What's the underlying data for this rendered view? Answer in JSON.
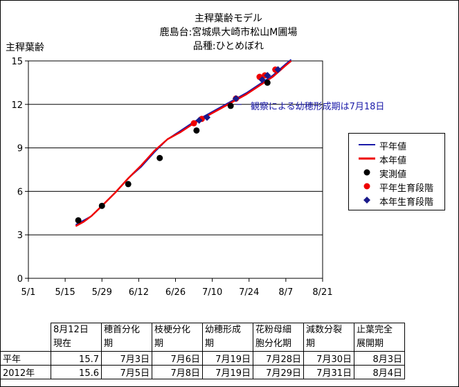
{
  "title_lines": [
    "主稈葉齢モデル",
    "鹿島台:宮城県大崎市松山M圃場",
    "品種:ひとめぼれ"
  ],
  "chart_data": {
    "type": "line",
    "title": "主稈葉齢モデル",
    "ylabel": "主稈葉齢",
    "xlabel": "",
    "ylim": [
      0,
      15
    ],
    "y_ticks": [
      "0",
      "3",
      "6",
      "9",
      "12",
      "15"
    ],
    "y_tick_values": [
      0,
      3,
      6,
      9,
      12,
      15
    ],
    "xlim": [
      "5/1",
      "8/21"
    ],
    "x_ticks": [
      "5/1",
      "5/15",
      "5/29",
      "6/12",
      "6/26",
      "7/10",
      "7/24",
      "8/7",
      "8/21"
    ],
    "grid": "horizontal",
    "legend_position": "right",
    "series": [
      {
        "name": "平年値",
        "kind": "line",
        "color": "#1a1aa8",
        "x": [
          "5/19",
          "5/25",
          "5/29",
          "6/3",
          "6/8",
          "6/13",
          "6/18",
          "6/23",
          "6/28",
          "7/3",
          "7/8",
          "7/13",
          "7/18",
          "7/23",
          "7/28",
          "8/2",
          "8/7",
          "8/9"
        ],
        "y": [
          3.7,
          4.3,
          5.0,
          5.9,
          6.9,
          7.7,
          8.7,
          9.6,
          10.2,
          10.8,
          11.3,
          11.8,
          12.3,
          12.8,
          13.4,
          14.0,
          14.8,
          15.1
        ]
      },
      {
        "name": "本年値",
        "kind": "line",
        "color": "#ee0000",
        "x": [
          "5/19",
          "5/22",
          "5/25",
          "5/29",
          "6/3",
          "6/8",
          "6/13",
          "6/18",
          "6/23",
          "6/28",
          "7/3",
          "7/8",
          "7/13",
          "7/18",
          "7/23",
          "7/28",
          "8/2",
          "8/7",
          "8/9"
        ],
        "y": [
          3.6,
          3.9,
          4.3,
          5.0,
          5.9,
          6.9,
          7.8,
          8.8,
          9.6,
          10.1,
          10.7,
          11.2,
          11.7,
          12.2,
          12.7,
          13.3,
          13.9,
          14.7,
          15.0
        ]
      },
      {
        "name": "実測値",
        "kind": "scatter",
        "marker": "circle",
        "color": "#000000",
        "x": [
          "5/20",
          "5/29",
          "6/8",
          "6/20",
          "7/4",
          "7/17",
          "7/31"
        ],
        "y": [
          4.0,
          5.0,
          6.5,
          8.3,
          10.2,
          11.9,
          13.5
        ]
      },
      {
        "name": "平年生育段階",
        "kind": "scatter",
        "marker": "circle",
        "color": "#ee0000",
        "x": [
          "7/3",
          "7/6",
          "7/19",
          "7/28",
          "7/30",
          "8/3"
        ],
        "y": [
          10.7,
          11.0,
          12.4,
          13.9,
          14.0,
          14.4
        ]
      },
      {
        "name": "本年生育段階",
        "kind": "scatter",
        "marker": "diamond",
        "color": "#1a1a8a",
        "x": [
          "7/5",
          "7/8",
          "7/19",
          "7/29",
          "7/31",
          "8/4"
        ],
        "y": [
          10.9,
          11.1,
          12.4,
          13.7,
          14.0,
          14.4
        ]
      }
    ],
    "annotation": {
      "text": "観察による幼穂形成期は7月18日",
      "x": "7/18",
      "y": 12.0,
      "color": "#1a1aa8"
    }
  },
  "table": {
    "header": [
      "",
      "8月12日\n現在",
      "穂首分化\n期",
      "枝梗分化\n期",
      "幼穂形成\n期",
      "花粉母細\n胞分化期",
      "減数分裂\n期",
      "止葉完全\n展開期"
    ],
    "rows": [
      [
        "平年",
        "15.7",
        "7月3日",
        "7月6日",
        "7月19日",
        "7月28日",
        "7月30日",
        "8月3日"
      ],
      [
        "2012年",
        "15.6",
        "7月5日",
        "7月8日",
        "7月19日",
        "7月29日",
        "7月31日",
        "8月4日"
      ]
    ]
  }
}
